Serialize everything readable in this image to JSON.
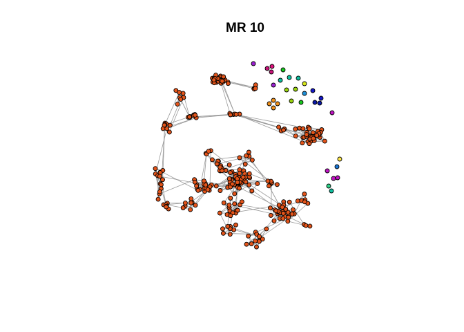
{
  "figure": {
    "title": "MR 10"
  },
  "colors": {
    "main_component": "#e3541a",
    "edge": "#9a9a9a",
    "isolates": [
      "#9b1fd1",
      "#c8157a",
      "#e0117f",
      "#18c81f",
      "#10bfa0",
      "#9ad40f",
      "#d8e81a",
      "#1e90d8",
      "#1518c8",
      "#0a18a8",
      "#c014c4",
      "#f0901a",
      "#ffe84a",
      "#1a78d8",
      "#2fd28a",
      "#10c0a0"
    ]
  },
  "chart_data": {
    "type": "network",
    "title": "MR 10",
    "node_count_main_component": 300,
    "isolated_nodes": 28
  }
}
